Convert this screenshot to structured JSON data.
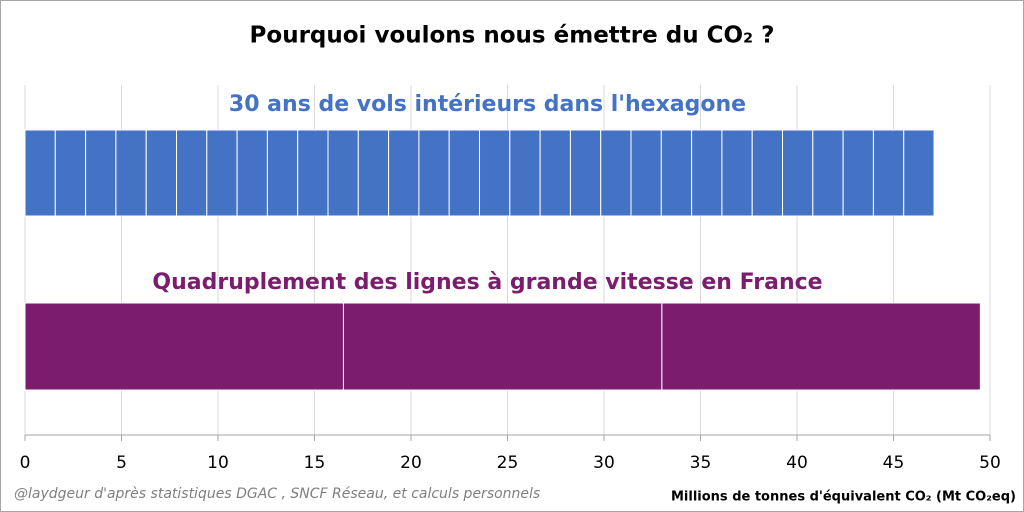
{
  "chart_data": {
    "type": "stacked-bar-horizontal",
    "title": "Pourquoi voulons nous émettre du CO₂ ?",
    "xlabel": "Millions de tonnes d'équivalent CO₂ (Mt CO₂eq)",
    "source": "@laydgeur d'après statistiques DGAC , SNCF Réseau, et calculs personnels",
    "xlim": [
      0,
      50
    ],
    "xticks": [
      0,
      5,
      10,
      15,
      20,
      25,
      30,
      35,
      40,
      45,
      50
    ],
    "grid": true,
    "bars": [
      {
        "label": "30 ans de vols intérieurs dans l'hexagone",
        "color": "#4472c4",
        "segments": [
          1.57,
          1.57,
          1.57,
          1.57,
          1.57,
          1.57,
          1.57,
          1.57,
          1.57,
          1.57,
          1.57,
          1.57,
          1.57,
          1.57,
          1.57,
          1.57,
          1.57,
          1.57,
          1.57,
          1.57,
          1.57,
          1.57,
          1.57,
          1.57,
          1.57,
          1.57,
          1.57,
          1.57,
          1.57,
          1.57
        ]
      },
      {
        "label": "Quadruplement des lignes à grande vitesse en France",
        "color": "#7b1c6e",
        "segments": [
          16.5,
          16.5,
          16.5
        ]
      }
    ]
  }
}
